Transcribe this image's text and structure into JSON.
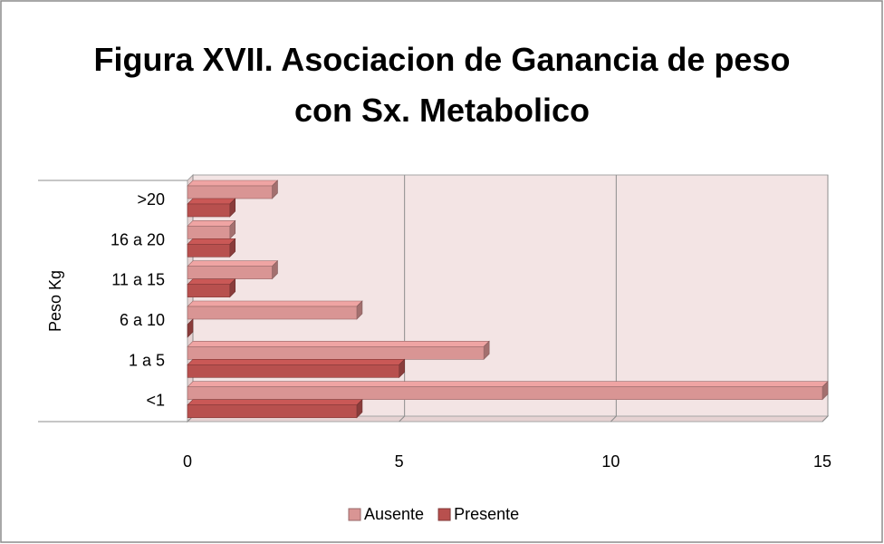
{
  "chart_data": {
    "type": "bar3d_horizontal",
    "title": "Figura XVII. Asociacion de Ganancia de peso con Sx. Metabolico",
    "y_label": "Peso Kg",
    "categories": [
      "<1",
      "1 a 5",
      "6 a 10",
      "11 a 15",
      "16 a 20",
      ">20"
    ],
    "series": [
      {
        "name": "Ausente",
        "color": "#d99594",
        "values": [
          15,
          7,
          4,
          2,
          1,
          2
        ]
      },
      {
        "name": "Presente",
        "color": "#b8504e",
        "values": [
          4,
          5,
          0,
          1,
          1,
          1
        ]
      }
    ],
    "xlim": [
      0,
      15
    ],
    "xticks": [
      0,
      5,
      10,
      15
    ],
    "grid": true,
    "legend": "bottom"
  }
}
